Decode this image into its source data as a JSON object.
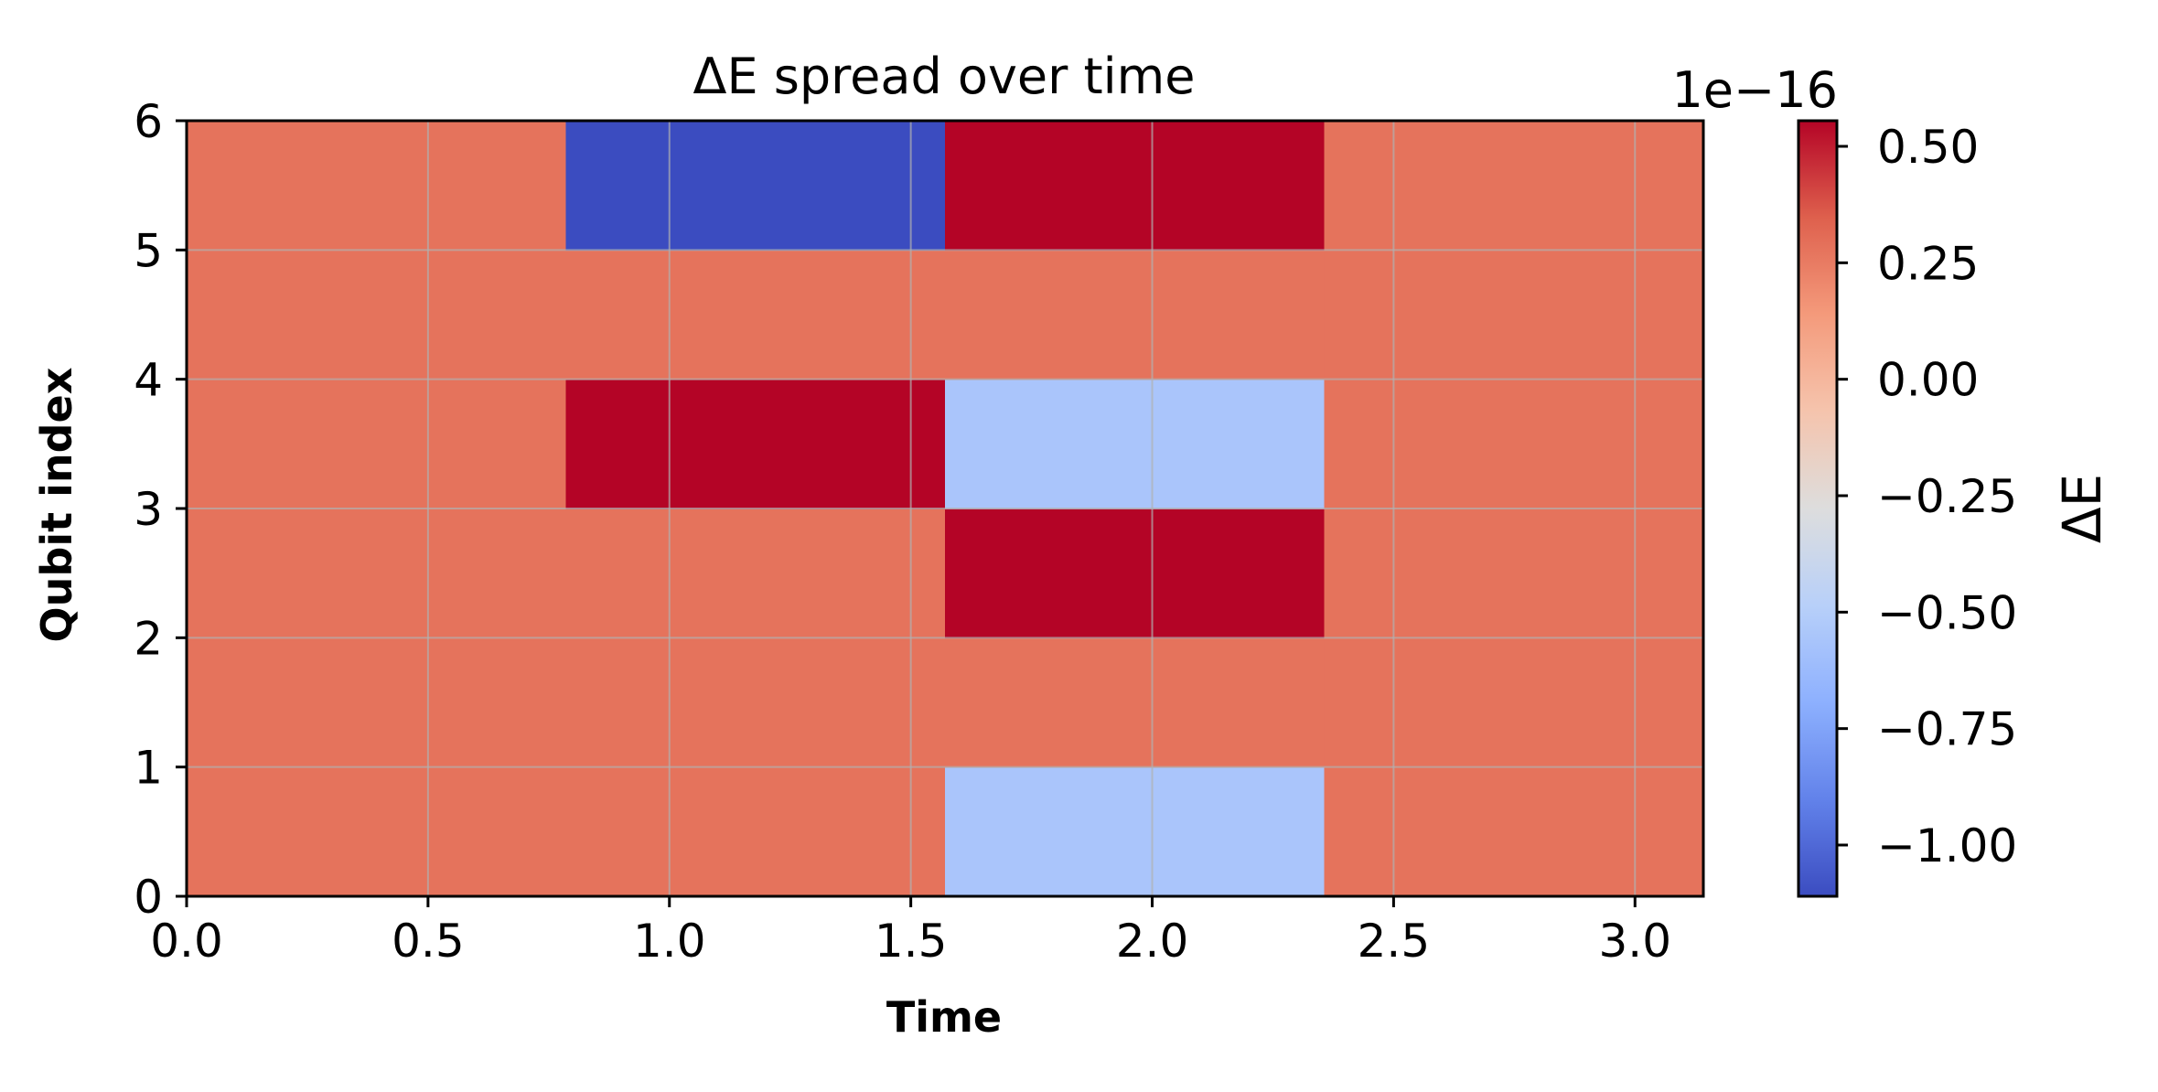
{
  "chart_data": {
    "type": "heatmap",
    "title": "ΔE spread over time",
    "xlabel": "Time",
    "ylabel": "Qubit index",
    "colorbar_label": "ΔE",
    "colorbar_offset": "1e−16",
    "colormap": "coolwarm",
    "xlim": [
      0,
      3.14159
    ],
    "ylim": [
      0,
      6
    ],
    "clim": [
      -1.11,
      0.555
    ],
    "x_ticks": [
      "0.0",
      "0.5",
      "1.0",
      "1.5",
      "2.0",
      "2.5",
      "3.0"
    ],
    "x_tick_values": [
      0,
      0.5,
      1.0,
      1.5,
      2.0,
      2.5,
      3.0
    ],
    "y_ticks": [
      "0",
      "1",
      "2",
      "3",
      "4",
      "5",
      "6"
    ],
    "y_tick_values": [
      0,
      1,
      2,
      3,
      4,
      5,
      6
    ],
    "colorbar_ticks": [
      "0.50",
      "0.25",
      "0.00",
      "−0.25",
      "−0.50",
      "−0.75",
      "−1.00"
    ],
    "colorbar_tick_values": [
      0.5,
      0.25,
      0.0,
      -0.25,
      -0.5,
      -0.75,
      -1.0
    ],
    "grid": true,
    "x_edges": [
      0,
      0.7854,
      1.5708,
      2.3562,
      3.14159
    ],
    "rows": [
      {
        "qubit_range": [
          0,
          1
        ],
        "values": [
          0.277,
          0.277,
          -0.555,
          0.277
        ]
      },
      {
        "qubit_range": [
          1,
          2
        ],
        "values": [
          0.277,
          0.277,
          0.277,
          0.277
        ]
      },
      {
        "qubit_range": [
          2,
          3
        ],
        "values": [
          0.277,
          0.277,
          0.555,
          0.277
        ]
      },
      {
        "qubit_range": [
          3,
          4
        ],
        "values": [
          0.277,
          0.555,
          -0.555,
          0.277
        ]
      },
      {
        "qubit_range": [
          4,
          5
        ],
        "values": [
          0.277,
          0.277,
          0.277,
          0.277
        ]
      },
      {
        "qubit_range": [
          5,
          6
        ],
        "values": [
          0.277,
          -1.11,
          0.555,
          0.277
        ]
      }
    ]
  }
}
